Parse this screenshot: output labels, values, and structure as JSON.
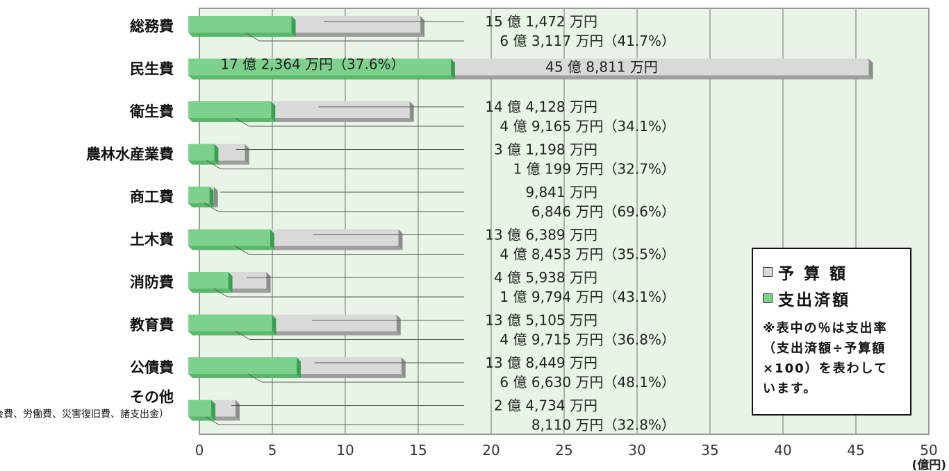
{
  "chart_data": {
    "type": "bar",
    "orientation": "horizontal",
    "categories": [
      {
        "label": "総務費",
        "sublabel": ""
      },
      {
        "label": "民生費",
        "sublabel": ""
      },
      {
        "label": "衛生費",
        "sublabel": ""
      },
      {
        "label": "農林水産業費",
        "sublabel": ""
      },
      {
        "label": "商工費",
        "sublabel": ""
      },
      {
        "label": "土木費",
        "sublabel": ""
      },
      {
        "label": "消防費",
        "sublabel": ""
      },
      {
        "label": "教育費",
        "sublabel": ""
      },
      {
        "label": "公債費",
        "sublabel": ""
      },
      {
        "label": "その他",
        "sublabel": "（議会費、労働費、災害復旧費、諸支出金）"
      }
    ],
    "series": [
      {
        "name": "予 算 額",
        "color": "#d9d9d9",
        "values": [
          15.1472,
          45.8811,
          14.4128,
          3.1198,
          0.9841,
          13.6389,
          4.5938,
          13.5105,
          13.8449,
          2.4734
        ],
        "labels": [
          "15 億 1,472 万円",
          "45 億 8,811 万円",
          "14 億 4,128 万円",
          "3 億 1,198 万円",
          "9,841 万円",
          "13 億 6,389 万円",
          "4 億 5,938 万円",
          "13 億 5,105 万円",
          "13 億 8,449 万円",
          "2 億 4,734 万円"
        ]
      },
      {
        "name": "支出済額",
        "color": "#7ed18c",
        "values": [
          6.3117,
          17.2364,
          4.9165,
          1.0199,
          0.6846,
          4.8453,
          1.9794,
          4.9715,
          6.663,
          0.811
        ],
        "labels": [
          "6 億 3,117 万円（41.7%）",
          "17 億 2,364 万円（37.6%）",
          "4 億 9,165 万円（34.1%）",
          "1 億 199 万円（32.7%）",
          "6,846 万円（69.6%）",
          "4 億 8,453 万円（35.5%）",
          "1 億 9,794 万円（43.1%）",
          "4 億 9,715 万円（36.8%）",
          "6 億 6,630 万円（48.1%）",
          "8,110 万円（32.8%）"
        ]
      }
    ],
    "xlim": [
      0,
      50
    ],
    "xticks": [
      0,
      5,
      10,
      15,
      20,
      25,
      30,
      35,
      40,
      45,
      50
    ],
    "unit_label": "(億円)",
    "grid": true,
    "background_color": "#e8f5e6"
  },
  "legend": {
    "budget_label": "予 算 額",
    "spent_label": "支出済額",
    "note": "※表中の％は支出率（支出済額÷予算額×100）を表わしています。"
  }
}
